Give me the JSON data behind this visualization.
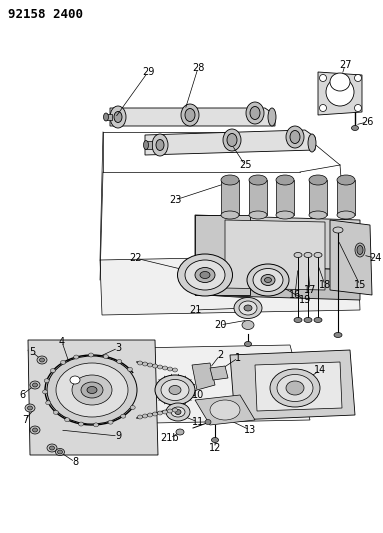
{
  "title": "92158 2400",
  "bg_color": "#ffffff",
  "line_color": "#000000",
  "gray_light": "#d0d0d0",
  "gray_mid": "#b0b0b0",
  "gray_dark": "#888888",
  "title_fontsize": 9,
  "label_fontsize": 7,
  "fig_width": 3.83,
  "fig_height": 5.33,
  "dpi": 100
}
